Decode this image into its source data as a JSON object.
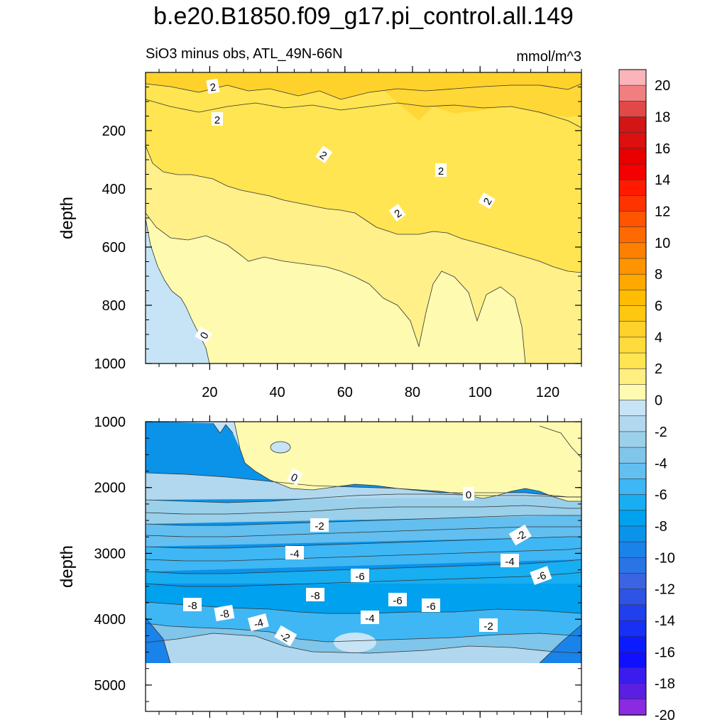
{
  "chart_data": {
    "type": "contour",
    "title": "b.e20.B1850.f09_g17.pi_control.all.149",
    "subtitle_left": "SiO3 minus obs, ATL_49N-66N",
    "units": "mmol/m^3",
    "ylabel": "depth",
    "x_ticks": [
      "20",
      "40",
      "60",
      "80",
      "100",
      "120"
    ],
    "xlim": [
      1,
      130
    ],
    "panels": [
      {
        "name": "upper",
        "ylim": [
          0,
          1000
        ],
        "y_ticks": [
          "200",
          "400",
          "600",
          "800",
          "1000"
        ],
        "contour_labels": [
          "2",
          "2",
          "2",
          "2",
          "2",
          "2",
          "0"
        ]
      },
      {
        "name": "lower",
        "ylim": [
          1000,
          5400
        ],
        "y_ticks": [
          "1000",
          "2000",
          "3000",
          "4000",
          "5000"
        ],
        "contour_labels": [
          "0",
          "0",
          "-2",
          "-2",
          "-4",
          "-4",
          "-6",
          "-6",
          "-8",
          "-8",
          "-6",
          "-8",
          "-6",
          "-4",
          "-4",
          "-2",
          "-2"
        ]
      }
    ],
    "colorbar": {
      "labels": [
        "20",
        "18",
        "16",
        "14",
        "12",
        "10",
        "8",
        "6",
        "4",
        "2",
        "0",
        "-2",
        "-4",
        "-6",
        "-8",
        "-10",
        "-12",
        "-14",
        "-16",
        "-18",
        "-20"
      ],
      "colors": [
        "#fbb4b9",
        "#f27f7f",
        "#e24848",
        "#d31515",
        "#dd0f0f",
        "#e80000",
        "#f40000",
        "#ff1a00",
        "#ff3300",
        "#ff5500",
        "#ff6a00",
        "#ff8000",
        "#ff9400",
        "#ffa800",
        "#ffbc00",
        "#ffc810",
        "#ffd22b",
        "#ffdc3c",
        "#ffe552",
        "#ffee80",
        "#fefbb0",
        "#c6e4f5",
        "#b1d8ee",
        "#9ad0ea",
        "#80c5ea",
        "#62bff0",
        "#3fb7f4",
        "#17aef2",
        "#00a1ee",
        "#0b93ea",
        "#1983ea",
        "#2a74e6",
        "#3b64e2",
        "#2e54e5",
        "#2040ee",
        "#1830f4",
        "#0a1cff",
        "#1010ff",
        "#3a1dee",
        "#5a1fe0",
        "#8a2be2"
      ]
    }
  }
}
